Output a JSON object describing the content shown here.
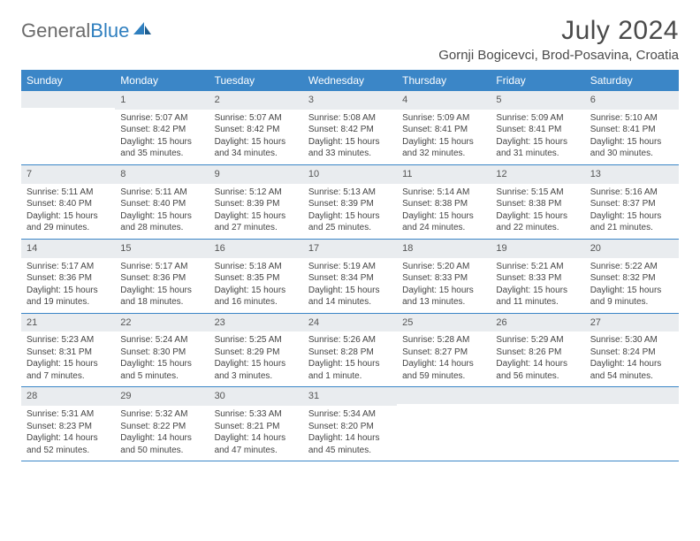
{
  "brand": {
    "part1": "General",
    "part2": "Blue"
  },
  "title": "July 2024",
  "location": "Gornji Bogicevci, Brod-Posavina, Croatia",
  "colors": {
    "header_bg": "#3b86c7",
    "header_text": "#ffffff",
    "daynum_bg": "#e9ecef",
    "row_divider": "#3b86c7",
    "text": "#444444",
    "brand_gray": "#6b6b6b",
    "brand_blue": "#2f7fbf"
  },
  "day_names": [
    "Sunday",
    "Monday",
    "Tuesday",
    "Wednesday",
    "Thursday",
    "Friday",
    "Saturday"
  ],
  "weeks": [
    [
      {
        "n": "",
        "sr": "",
        "ss": "",
        "dl": ""
      },
      {
        "n": "1",
        "sr": "Sunrise: 5:07 AM",
        "ss": "Sunset: 8:42 PM",
        "dl": "Daylight: 15 hours and 35 minutes."
      },
      {
        "n": "2",
        "sr": "Sunrise: 5:07 AM",
        "ss": "Sunset: 8:42 PM",
        "dl": "Daylight: 15 hours and 34 minutes."
      },
      {
        "n": "3",
        "sr": "Sunrise: 5:08 AM",
        "ss": "Sunset: 8:42 PM",
        "dl": "Daylight: 15 hours and 33 minutes."
      },
      {
        "n": "4",
        "sr": "Sunrise: 5:09 AM",
        "ss": "Sunset: 8:41 PM",
        "dl": "Daylight: 15 hours and 32 minutes."
      },
      {
        "n": "5",
        "sr": "Sunrise: 5:09 AM",
        "ss": "Sunset: 8:41 PM",
        "dl": "Daylight: 15 hours and 31 minutes."
      },
      {
        "n": "6",
        "sr": "Sunrise: 5:10 AM",
        "ss": "Sunset: 8:41 PM",
        "dl": "Daylight: 15 hours and 30 minutes."
      }
    ],
    [
      {
        "n": "7",
        "sr": "Sunrise: 5:11 AM",
        "ss": "Sunset: 8:40 PM",
        "dl": "Daylight: 15 hours and 29 minutes."
      },
      {
        "n": "8",
        "sr": "Sunrise: 5:11 AM",
        "ss": "Sunset: 8:40 PM",
        "dl": "Daylight: 15 hours and 28 minutes."
      },
      {
        "n": "9",
        "sr": "Sunrise: 5:12 AM",
        "ss": "Sunset: 8:39 PM",
        "dl": "Daylight: 15 hours and 27 minutes."
      },
      {
        "n": "10",
        "sr": "Sunrise: 5:13 AM",
        "ss": "Sunset: 8:39 PM",
        "dl": "Daylight: 15 hours and 25 minutes."
      },
      {
        "n": "11",
        "sr": "Sunrise: 5:14 AM",
        "ss": "Sunset: 8:38 PM",
        "dl": "Daylight: 15 hours and 24 minutes."
      },
      {
        "n": "12",
        "sr": "Sunrise: 5:15 AM",
        "ss": "Sunset: 8:38 PM",
        "dl": "Daylight: 15 hours and 22 minutes."
      },
      {
        "n": "13",
        "sr": "Sunrise: 5:16 AM",
        "ss": "Sunset: 8:37 PM",
        "dl": "Daylight: 15 hours and 21 minutes."
      }
    ],
    [
      {
        "n": "14",
        "sr": "Sunrise: 5:17 AM",
        "ss": "Sunset: 8:36 PM",
        "dl": "Daylight: 15 hours and 19 minutes."
      },
      {
        "n": "15",
        "sr": "Sunrise: 5:17 AM",
        "ss": "Sunset: 8:36 PM",
        "dl": "Daylight: 15 hours and 18 minutes."
      },
      {
        "n": "16",
        "sr": "Sunrise: 5:18 AM",
        "ss": "Sunset: 8:35 PM",
        "dl": "Daylight: 15 hours and 16 minutes."
      },
      {
        "n": "17",
        "sr": "Sunrise: 5:19 AM",
        "ss": "Sunset: 8:34 PM",
        "dl": "Daylight: 15 hours and 14 minutes."
      },
      {
        "n": "18",
        "sr": "Sunrise: 5:20 AM",
        "ss": "Sunset: 8:33 PM",
        "dl": "Daylight: 15 hours and 13 minutes."
      },
      {
        "n": "19",
        "sr": "Sunrise: 5:21 AM",
        "ss": "Sunset: 8:33 PM",
        "dl": "Daylight: 15 hours and 11 minutes."
      },
      {
        "n": "20",
        "sr": "Sunrise: 5:22 AM",
        "ss": "Sunset: 8:32 PM",
        "dl": "Daylight: 15 hours and 9 minutes."
      }
    ],
    [
      {
        "n": "21",
        "sr": "Sunrise: 5:23 AM",
        "ss": "Sunset: 8:31 PM",
        "dl": "Daylight: 15 hours and 7 minutes."
      },
      {
        "n": "22",
        "sr": "Sunrise: 5:24 AM",
        "ss": "Sunset: 8:30 PM",
        "dl": "Daylight: 15 hours and 5 minutes."
      },
      {
        "n": "23",
        "sr": "Sunrise: 5:25 AM",
        "ss": "Sunset: 8:29 PM",
        "dl": "Daylight: 15 hours and 3 minutes."
      },
      {
        "n": "24",
        "sr": "Sunrise: 5:26 AM",
        "ss": "Sunset: 8:28 PM",
        "dl": "Daylight: 15 hours and 1 minute."
      },
      {
        "n": "25",
        "sr": "Sunrise: 5:28 AM",
        "ss": "Sunset: 8:27 PM",
        "dl": "Daylight: 14 hours and 59 minutes."
      },
      {
        "n": "26",
        "sr": "Sunrise: 5:29 AM",
        "ss": "Sunset: 8:26 PM",
        "dl": "Daylight: 14 hours and 56 minutes."
      },
      {
        "n": "27",
        "sr": "Sunrise: 5:30 AM",
        "ss": "Sunset: 8:24 PM",
        "dl": "Daylight: 14 hours and 54 minutes."
      }
    ],
    [
      {
        "n": "28",
        "sr": "Sunrise: 5:31 AM",
        "ss": "Sunset: 8:23 PM",
        "dl": "Daylight: 14 hours and 52 minutes."
      },
      {
        "n": "29",
        "sr": "Sunrise: 5:32 AM",
        "ss": "Sunset: 8:22 PM",
        "dl": "Daylight: 14 hours and 50 minutes."
      },
      {
        "n": "30",
        "sr": "Sunrise: 5:33 AM",
        "ss": "Sunset: 8:21 PM",
        "dl": "Daylight: 14 hours and 47 minutes."
      },
      {
        "n": "31",
        "sr": "Sunrise: 5:34 AM",
        "ss": "Sunset: 8:20 PM",
        "dl": "Daylight: 14 hours and 45 minutes."
      },
      {
        "n": "",
        "sr": "",
        "ss": "",
        "dl": ""
      },
      {
        "n": "",
        "sr": "",
        "ss": "",
        "dl": ""
      },
      {
        "n": "",
        "sr": "",
        "ss": "",
        "dl": ""
      }
    ]
  ]
}
